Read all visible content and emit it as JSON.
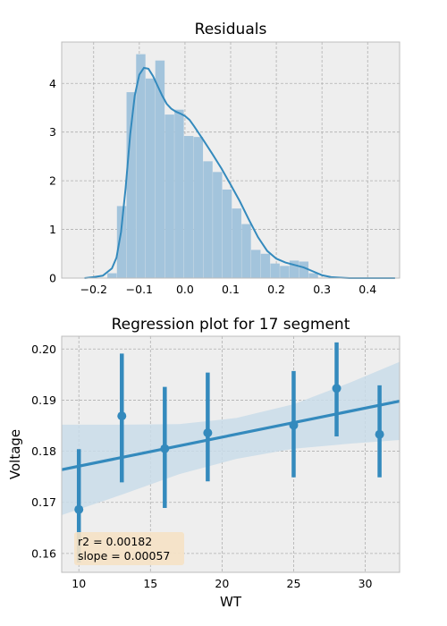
{
  "chart_data": [
    {
      "type": "bar",
      "title": "Residuals",
      "xlabel": "",
      "ylabel": "",
      "xlim": [
        -0.27,
        0.47
      ],
      "ylim": [
        0,
        4.85
      ],
      "xticks": [
        -0.2,
        -0.1,
        0.0,
        0.1,
        0.2,
        0.3,
        0.4
      ],
      "xtick_labels": [
        "−0.2",
        "−0.1",
        "0.0",
        "0.1",
        "0.2",
        "0.3",
        "0.4"
      ],
      "yticks": [
        0,
        1,
        2,
        3,
        4
      ],
      "ytick_labels": [
        "0",
        "1",
        "2",
        "3",
        "4"
      ],
      "bin_edges": [
        -0.17,
        -0.149,
        -0.128,
        -0.107,
        -0.086,
        -0.065,
        -0.044,
        -0.023,
        -0.002,
        0.019,
        0.04,
        0.061,
        0.082,
        0.103,
        0.124,
        0.145,
        0.166,
        0.187,
        0.208,
        0.229,
        0.25,
        0.271,
        0.292
      ],
      "values": [
        0.1,
        1.48,
        3.82,
        4.6,
        4.1,
        4.47,
        3.36,
        3.46,
        2.92,
        2.9,
        2.4,
        2.18,
        1.82,
        1.43,
        1.11,
        0.58,
        0.5,
        0.3,
        0.25,
        0.36,
        0.34,
        0.1
      ],
      "kde": {
        "x": [
          -0.22,
          -0.2,
          -0.18,
          -0.16,
          -0.15,
          -0.14,
          -0.13,
          -0.12,
          -0.11,
          -0.1,
          -0.09,
          -0.08,
          -0.07,
          -0.06,
          -0.05,
          -0.04,
          -0.03,
          -0.02,
          -0.01,
          0.0,
          0.01,
          0.02,
          0.04,
          0.06,
          0.08,
          0.1,
          0.12,
          0.14,
          0.16,
          0.18,
          0.2,
          0.22,
          0.24,
          0.26,
          0.28,
          0.3,
          0.32,
          0.34,
          0.36,
          0.38,
          0.4,
          0.42,
          0.44,
          0.46
        ],
        "y": [
          0.0,
          0.02,
          0.05,
          0.2,
          0.42,
          0.95,
          1.85,
          2.95,
          3.75,
          4.18,
          4.32,
          4.3,
          4.15,
          3.95,
          3.75,
          3.58,
          3.48,
          3.42,
          3.38,
          3.33,
          3.25,
          3.12,
          2.84,
          2.55,
          2.25,
          1.92,
          1.58,
          1.2,
          0.84,
          0.56,
          0.4,
          0.32,
          0.27,
          0.22,
          0.14,
          0.06,
          0.02,
          0.01,
          0.0,
          0.0,
          0.0,
          0.0,
          0.0,
          0.0
        ]
      },
      "grid": true
    },
    {
      "type": "scatter",
      "title": "Regression plot for 17 segment",
      "xlabel": "WT",
      "ylabel": "Voltage",
      "xlim": [
        8.8,
        32.4
      ],
      "ylim": [
        0.1563,
        0.2025
      ],
      "xticks": [
        10,
        15,
        20,
        25,
        30
      ],
      "xtick_labels": [
        "10",
        "15",
        "20",
        "25",
        "30"
      ],
      "yticks": [
        0.16,
        0.17,
        0.18,
        0.19,
        0.2
      ],
      "ytick_labels": [
        "0.16",
        "0.17",
        "0.18",
        "0.19",
        "0.20"
      ],
      "points": [
        {
          "x": 10,
          "y": 0.1686,
          "lo": 0.1582,
          "hi": 0.1804
        },
        {
          "x": 13,
          "y": 0.1869,
          "lo": 0.1739,
          "hi": 0.1991
        },
        {
          "x": 16,
          "y": 0.1805,
          "lo": 0.1689,
          "hi": 0.1926
        },
        {
          "x": 19,
          "y": 0.1836,
          "lo": 0.1741,
          "hi": 0.1954
        },
        {
          "x": 25,
          "y": 0.1851,
          "lo": 0.1749,
          "hi": 0.1957
        },
        {
          "x": 28,
          "y": 0.1923,
          "lo": 0.1829,
          "hi": 0.2013
        },
        {
          "x": 31,
          "y": 0.1833,
          "lo": 0.1749,
          "hi": 0.1929
        }
      ],
      "regression": {
        "x": [
          8.8,
          32.4
        ],
        "y": [
          0.1764,
          0.1898
        ]
      },
      "confidence_band": {
        "x": [
          8.8,
          13,
          17,
          21,
          25,
          29,
          32.4
        ],
        "lo": [
          0.1675,
          0.1715,
          0.1755,
          0.1785,
          0.1805,
          0.1815,
          0.1822
        ],
        "hi": [
          0.1852,
          0.1852,
          0.1853,
          0.1865,
          0.1892,
          0.1935,
          0.1975
        ]
      },
      "annotation": {
        "line1": "r2 = 0.00182",
        "line2": "slope = 0.00057"
      },
      "grid": true
    }
  ],
  "colors": {
    "bar": "#a3c4dc",
    "line": "#348abd",
    "band": "#c9dce9",
    "plot_bg": "#eeeeee",
    "frame": "#bcbcbc",
    "annot_bg": "#f5e1c4"
  }
}
